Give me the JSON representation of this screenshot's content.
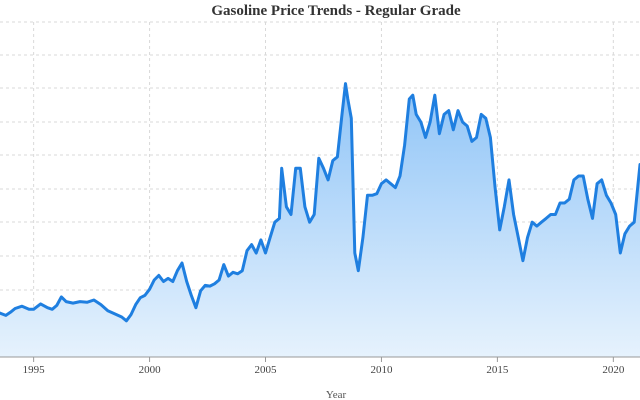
{
  "chart_data": {
    "type": "area",
    "title": "Gasoline Price Trends - Regular Grade",
    "xlabel": "Year",
    "ylabel": "",
    "x_ticks": [
      "1995",
      "2000",
      "2005",
      "2010",
      "2015",
      "2020"
    ],
    "xlim": [
      1993.55,
      2021.15
    ],
    "ylim": [
      0.5,
      4.85
    ],
    "grid": true,
    "legend": "none",
    "colors": {
      "line": "#1f7fe0",
      "fill_top": "#8fc4f7",
      "fill_bottom": "#e6f2fd"
    },
    "series": [
      {
        "x": [
          1993.55,
          1993.8,
          1994.0,
          1994.2,
          1994.5,
          1994.8,
          1995.0,
          1995.3,
          1995.6,
          1995.8,
          1996.0,
          1996.2,
          1996.4,
          1996.7,
          1997.0,
          1997.3,
          1997.6,
          1997.9,
          1998.2,
          1998.5,
          1998.8,
          1999.0,
          1999.2,
          1999.4,
          1999.6,
          1999.8,
          2000.0,
          2000.2,
          2000.4,
          2000.6,
          2000.8,
          2001.0,
          2001.2,
          2001.4,
          2001.6,
          2001.8,
          2002.0,
          2002.2,
          2002.4,
          2002.6,
          2002.8,
          2003.0,
          2003.2,
          2003.4,
          2003.6,
          2003.8,
          2004.0,
          2004.2,
          2004.4,
          2004.6,
          2004.8,
          2005.0,
          2005.2,
          2005.4,
          2005.6,
          2005.7,
          2005.9,
          2006.1,
          2006.3,
          2006.5,
          2006.7,
          2006.9,
          2007.1,
          2007.3,
          2007.5,
          2007.7,
          2007.9,
          2008.1,
          2008.3,
          2008.45,
          2008.55,
          2008.7,
          2008.85,
          2009.0,
          2009.2,
          2009.4,
          2009.6,
          2009.8,
          2010.0,
          2010.2,
          2010.4,
          2010.6,
          2010.8,
          2011.0,
          2011.2,
          2011.35,
          2011.5,
          2011.7,
          2011.9,
          2012.1,
          2012.3,
          2012.5,
          2012.7,
          2012.9,
          2013.1,
          2013.3,
          2013.5,
          2013.7,
          2013.9,
          2014.1,
          2014.3,
          2014.5,
          2014.7,
          2014.9,
          2015.1,
          2015.3,
          2015.5,
          2015.7,
          2015.9,
          2016.1,
          2016.3,
          2016.5,
          2016.7,
          2016.9,
          2017.1,
          2017.3,
          2017.5,
          2017.7,
          2017.9,
          2018.1,
          2018.3,
          2018.5,
          2018.7,
          2018.9,
          2019.1,
          2019.3,
          2019.5,
          2019.7,
          2019.9,
          2020.1,
          2020.3,
          2020.5,
          2020.7,
          2020.9,
          2021.15
        ],
        "y": [
          1.07,
          1.04,
          1.08,
          1.13,
          1.16,
          1.12,
          1.12,
          1.19,
          1.14,
          1.12,
          1.17,
          1.28,
          1.22,
          1.2,
          1.22,
          1.21,
          1.24,
          1.18,
          1.1,
          1.06,
          1.02,
          0.97,
          1.05,
          1.18,
          1.27,
          1.3,
          1.38,
          1.5,
          1.56,
          1.48,
          1.52,
          1.48,
          1.62,
          1.72,
          1.48,
          1.3,
          1.14,
          1.36,
          1.43,
          1.42,
          1.45,
          1.5,
          1.7,
          1.55,
          1.6,
          1.58,
          1.62,
          1.88,
          1.96,
          1.85,
          2.02,
          1.85,
          2.05,
          2.25,
          2.3,
          2.95,
          2.45,
          2.35,
          2.95,
          2.95,
          2.45,
          2.25,
          2.35,
          3.08,
          2.95,
          2.8,
          3.05,
          3.1,
          3.65,
          4.05,
          3.85,
          3.6,
          1.85,
          1.62,
          2.05,
          2.6,
          2.6,
          2.62,
          2.75,
          2.8,
          2.75,
          2.7,
          2.85,
          3.25,
          3.85,
          3.9,
          3.65,
          3.55,
          3.35,
          3.55,
          3.9,
          3.4,
          3.65,
          3.7,
          3.45,
          3.7,
          3.55,
          3.5,
          3.3,
          3.35,
          3.65,
          3.6,
          3.35,
          2.7,
          2.15,
          2.45,
          2.8,
          2.35,
          2.05,
          1.75,
          2.05,
          2.25,
          2.2,
          2.25,
          2.3,
          2.35,
          2.35,
          2.5,
          2.5,
          2.55,
          2.8,
          2.85,
          2.85,
          2.55,
          2.3,
          2.75,
          2.8,
          2.6,
          2.5,
          2.35,
          1.85,
          2.1,
          2.2,
          2.25,
          3.0
        ]
      }
    ]
  }
}
